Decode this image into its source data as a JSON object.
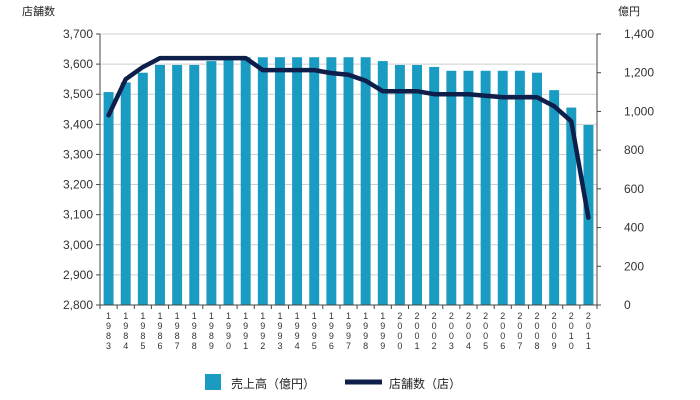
{
  "chart_data": {
    "type": "bar",
    "categories": [
      "1983",
      "1984",
      "1985",
      "1986",
      "1987",
      "1988",
      "1989",
      "1990",
      "1991",
      "1992",
      "1993",
      "1994",
      "1995",
      "1996",
      "1997",
      "1998",
      "1999",
      "2000",
      "2001",
      "2002",
      "2003",
      "2004",
      "2005",
      "2006",
      "2007",
      "2008",
      "2009",
      "2010",
      "2011"
    ],
    "series": [
      {
        "name": "売上高（億円）",
        "type": "bar",
        "axis": "right",
        "color": "#1a9bc2",
        "values": [
          1100,
          1150,
          1200,
          1240,
          1240,
          1240,
          1260,
          1280,
          1280,
          1280,
          1280,
          1280,
          1280,
          1280,
          1280,
          1280,
          1260,
          1240,
          1240,
          1230,
          1210,
          1210,
          1210,
          1210,
          1210,
          1200,
          1110,
          1020,
          930
        ]
      },
      {
        "name": "店舗数（店）",
        "type": "line",
        "axis": "left",
        "color": "#0d1f4a",
        "values": [
          3430,
          3550,
          3590,
          3620,
          3620,
          3620,
          3620,
          3620,
          3620,
          3580,
          3580,
          3580,
          3580,
          3570,
          3565,
          3545,
          3510,
          3510,
          3510,
          3500,
          3500,
          3500,
          3495,
          3490,
          3490,
          3490,
          3460,
          3410,
          3090
        ]
      }
    ],
    "left_axis": {
      "label": "店舗数",
      "ylim": [
        2800,
        3700
      ],
      "ticks": [
        "2,800",
        "2,900",
        "3,000",
        "3,100",
        "3,200",
        "3,300",
        "3,400",
        "3,500",
        "3,600",
        "3,700"
      ]
    },
    "right_axis": {
      "label": "億円",
      "ylim": [
        0,
        1400
      ],
      "ticks": [
        "0",
        "200",
        "400",
        "600",
        "800",
        "1,000",
        "1,200",
        "1,400"
      ]
    },
    "grid": true,
    "legend_position": "bottom"
  }
}
